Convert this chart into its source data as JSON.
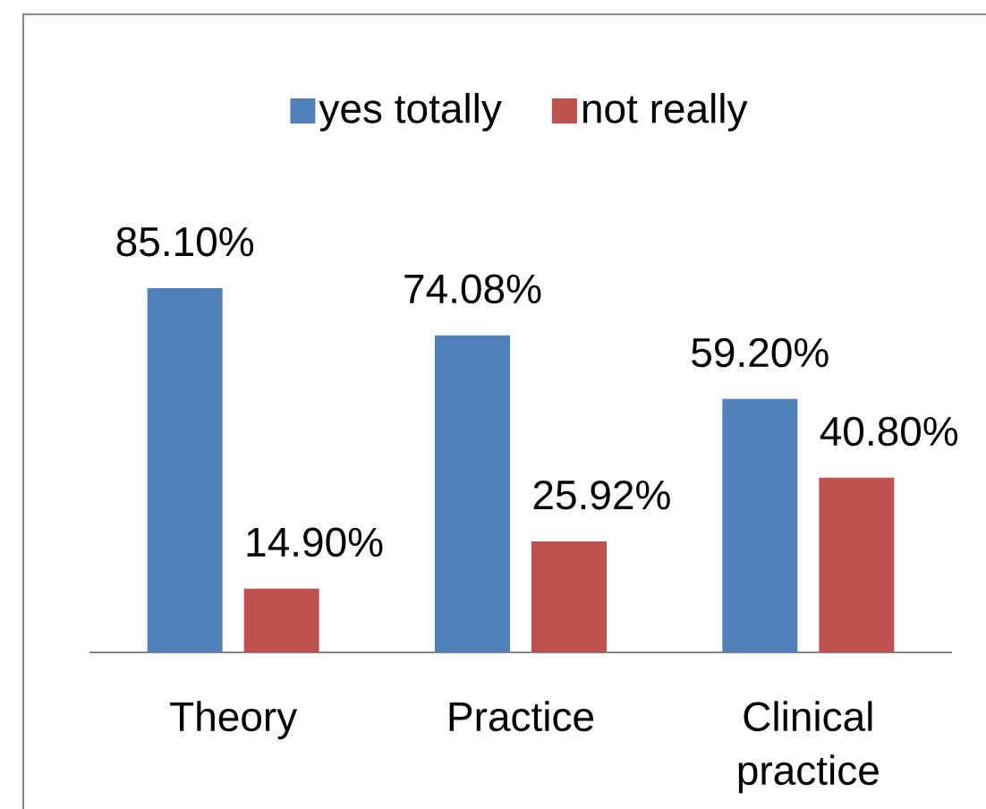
{
  "chart_data": {
    "type": "bar",
    "categories": [
      "Theory",
      "Practice",
      "Clinical practice"
    ],
    "series": [
      {
        "name": "yes totally",
        "color": "#4f81bd",
        "values": [
          85.1,
          74.08,
          59.2
        ],
        "value_labels": [
          "85.10%",
          "74.08%",
          "59.20%"
        ]
      },
      {
        "name": "not really",
        "color": "#c0504d",
        "values": [
          14.9,
          25.92,
          40.8
        ],
        "value_labels": [
          "14.90%",
          "25.92%",
          "40.80%"
        ]
      }
    ],
    "tick_labels": "x",
    "legend": "top"
  }
}
